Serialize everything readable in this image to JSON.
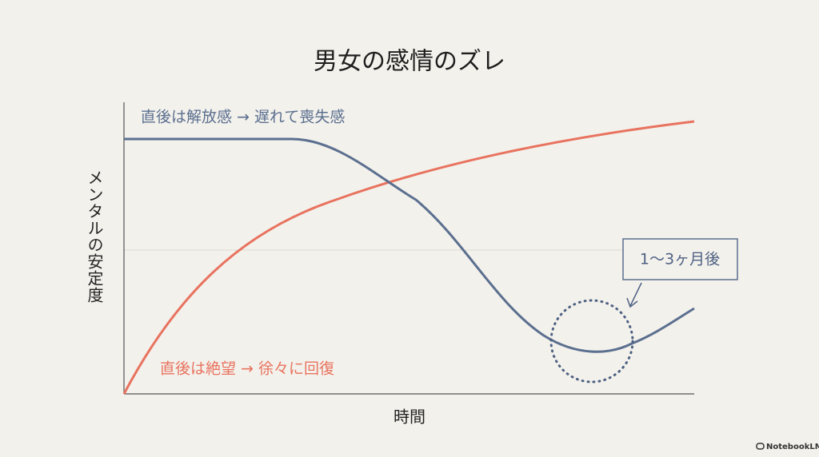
{
  "title": "男女の感情のズレ",
  "y_axis_label": "メンタルの安定度",
  "x_axis_label": "時間",
  "annotations": {
    "blue_line": "直後は解放感 → 遅れて喪失感",
    "red_line": "直後は絶望 → 徐々に回復",
    "callout": "1〜3ヶ月後"
  },
  "watermark": "NotebookLM"
}
